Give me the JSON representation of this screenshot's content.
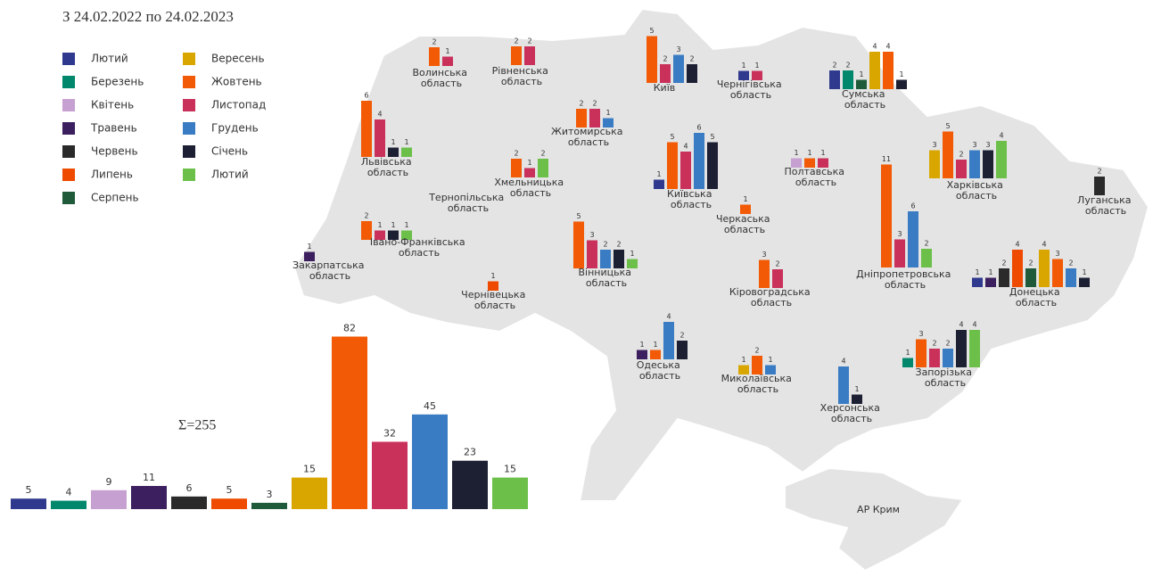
{
  "chart_data": {
    "type": "bar",
    "title": "З 24.02.2022 по 24.02.2023",
    "total_label": "Σ=255",
    "categories": [
      "Лютий",
      "Березень",
      "Квітень",
      "Травень",
      "Червень",
      "Липень",
      "Серпень",
      "Вересень",
      "Жовтень",
      "Листопад",
      "Грудень",
      "Січень",
      "Лютий"
    ],
    "colors": [
      "#2f3a8f",
      "#00876c",
      "#c7a0d2",
      "#3b1f5e",
      "#2a2a2a",
      "#ee4a00",
      "#1f5b3a",
      "#d9a600",
      "#f25a05",
      "#c9305a",
      "#3a7cc4",
      "#1d2033",
      "#6cc04a"
    ],
    "values": [
      5,
      4,
      9,
      11,
      6,
      5,
      3,
      15,
      82,
      32,
      45,
      23,
      15
    ]
  },
  "map": {
    "regions": [
      {
        "name": "Волинська область",
        "values": [
          2,
          1
        ],
        "colors": [
          "#f25a05",
          "#c9305a"
        ]
      },
      {
        "name": "Рівненська область",
        "values": [
          2,
          2
        ],
        "colors": [
          "#f25a05",
          "#c9305a"
        ]
      },
      {
        "name": "Київ",
        "values": [
          5,
          2,
          3,
          2
        ],
        "colors": [
          "#f25a05",
          "#c9305a",
          "#3a7cc4",
          "#1d2033"
        ]
      },
      {
        "name": "Чернігівська область",
        "values": [
          1,
          1
        ],
        "colors": [
          "#2f3a8f",
          "#c9305a"
        ]
      },
      {
        "name": "Сумська область",
        "values": [
          2,
          2,
          1,
          4,
          4,
          1
        ],
        "colors": [
          "#2f3a8f",
          "#00876c",
          "#1f5b3a",
          "#d9a600",
          "#f25a05",
          "#1d2033"
        ]
      },
      {
        "name": "Львівська область",
        "values": [
          6,
          4,
          1,
          1
        ],
        "colors": [
          "#f25a05",
          "#c9305a",
          "#1d2033",
          "#6cc04a"
        ]
      },
      {
        "name": "Житомирська область",
        "values": [
          2,
          2,
          1
        ],
        "colors": [
          "#f25a05",
          "#c9305a",
          "#3a7cc4"
        ]
      },
      {
        "name": "Хмельницька область",
        "values": [
          2,
          1,
          2
        ],
        "colors": [
          "#f25a05",
          "#c9305a",
          "#6cc04a"
        ]
      },
      {
        "name": "Київська область",
        "values": [
          1,
          5,
          4,
          6,
          5
        ],
        "colors": [
          "#2f3a8f",
          "#f25a05",
          "#c9305a",
          "#3a7cc4",
          "#1d2033"
        ]
      },
      {
        "name": "Полтавська область",
        "values": [
          1,
          1,
          1
        ],
        "colors": [
          "#c7a0d2",
          "#f25a05",
          "#c9305a"
        ]
      },
      {
        "name": "Харківська область",
        "values": [
          3,
          5,
          2,
          3,
          3,
          4
        ],
        "colors": [
          "#d9a600",
          "#f25a05",
          "#c9305a",
          "#3a7cc4",
          "#1d2033",
          "#6cc04a"
        ]
      },
      {
        "name": "Луганська область",
        "values": [
          2
        ],
        "colors": [
          "#2a2a2a"
        ]
      },
      {
        "name": "Тернопільська область",
        "values": [],
        "colors": []
      },
      {
        "name": "Івано-Франківська область",
        "values": [
          2,
          1,
          1,
          1
        ],
        "colors": [
          "#f25a05",
          "#c9305a",
          "#1d2033",
          "#6cc04a"
        ]
      },
      {
        "name": "Черкаська область",
        "values": [
          1
        ],
        "colors": [
          "#f25a05"
        ]
      },
      {
        "name": "Закарпатська область",
        "values": [
          1
        ],
        "colors": [
          "#3b1f5e"
        ]
      },
      {
        "name": "Вінницька область",
        "values": [
          5,
          3,
          2,
          2,
          1
        ],
        "colors": [
          "#f25a05",
          "#c9305a",
          "#3a7cc4",
          "#1d2033",
          "#6cc04a"
        ]
      },
      {
        "name": "Чернівецька область",
        "values": [
          1
        ],
        "colors": [
          "#ee4a00"
        ]
      },
      {
        "name": "Кіровоградська область",
        "values": [
          3,
          2
        ],
        "colors": [
          "#f25a05",
          "#c9305a"
        ]
      },
      {
        "name": "Дніпропетровська область",
        "values": [
          11,
          3,
          6,
          2
        ],
        "colors": [
          "#f25a05",
          "#c9305a",
          "#3a7cc4",
          "#6cc04a"
        ]
      },
      {
        "name": "Донецька область",
        "values": [
          1,
          1,
          2,
          4,
          2,
          4,
          3,
          2,
          1
        ],
        "colors": [
          "#2f3a8f",
          "#3b1f5e",
          "#2a2a2a",
          "#ee4a00",
          "#1f5b3a",
          "#d9a600",
          "#f25a05",
          "#3a7cc4",
          "#1d2033"
        ]
      },
      {
        "name": "Одеська область",
        "values": [
          1,
          1,
          4,
          2
        ],
        "colors": [
          "#3b1f5e",
          "#f25a05",
          "#3a7cc4",
          "#1d2033"
        ]
      },
      {
        "name": "Миколаївська область",
        "values": [
          1,
          2,
          1
        ],
        "colors": [
          "#d9a600",
          "#f25a05",
          "#3a7cc4"
        ]
      },
      {
        "name": "Херсонська область",
        "values": [
          4,
          1
        ],
        "colors": [
          "#3a7cc4",
          "#1d2033"
        ]
      },
      {
        "name": "Запорізька область",
        "values": [
          1,
          3,
          2,
          2,
          4,
          4
        ],
        "colors": [
          "#00876c",
          "#f25a05",
          "#c9305a",
          "#3a7cc4",
          "#1d2033",
          "#6cc04a"
        ]
      },
      {
        "name": "АР Крим",
        "values": [],
        "colors": []
      }
    ]
  }
}
